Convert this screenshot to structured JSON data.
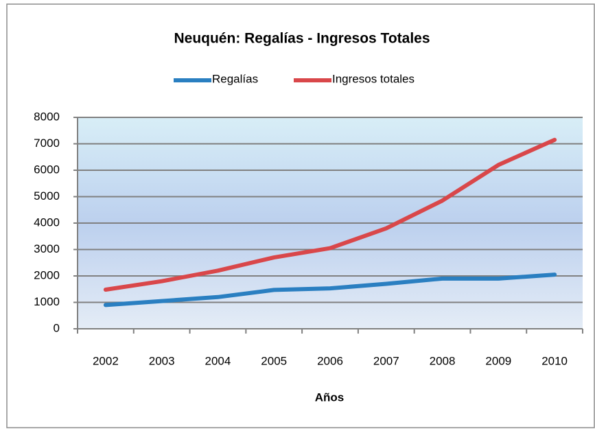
{
  "chart_data": {
    "type": "line",
    "title": "Neuquén: Regalías - Ingresos Totales",
    "x_label": "Años",
    "categories": [
      "2002",
      "2003",
      "2004",
      "2005",
      "2006",
      "2007",
      "2008",
      "2009",
      "2010"
    ],
    "series": [
      {
        "name": "Regalías",
        "color": "#2a7fc1",
        "values": [
          900,
          1050,
          1200,
          1470,
          1530,
          1700,
          1900,
          1900,
          2050
        ]
      },
      {
        "name": "Ingresos totales",
        "color": "#d9474a",
        "values": [
          1480,
          1800,
          2200,
          2700,
          3050,
          3800,
          4850,
          6200,
          7150
        ]
      }
    ],
    "ylim": [
      0,
      8000
    ],
    "yticks": [
      0,
      1000,
      2000,
      3000,
      4000,
      5000,
      6000,
      7000,
      8000
    ],
    "grid": true,
    "legend": "top"
  }
}
